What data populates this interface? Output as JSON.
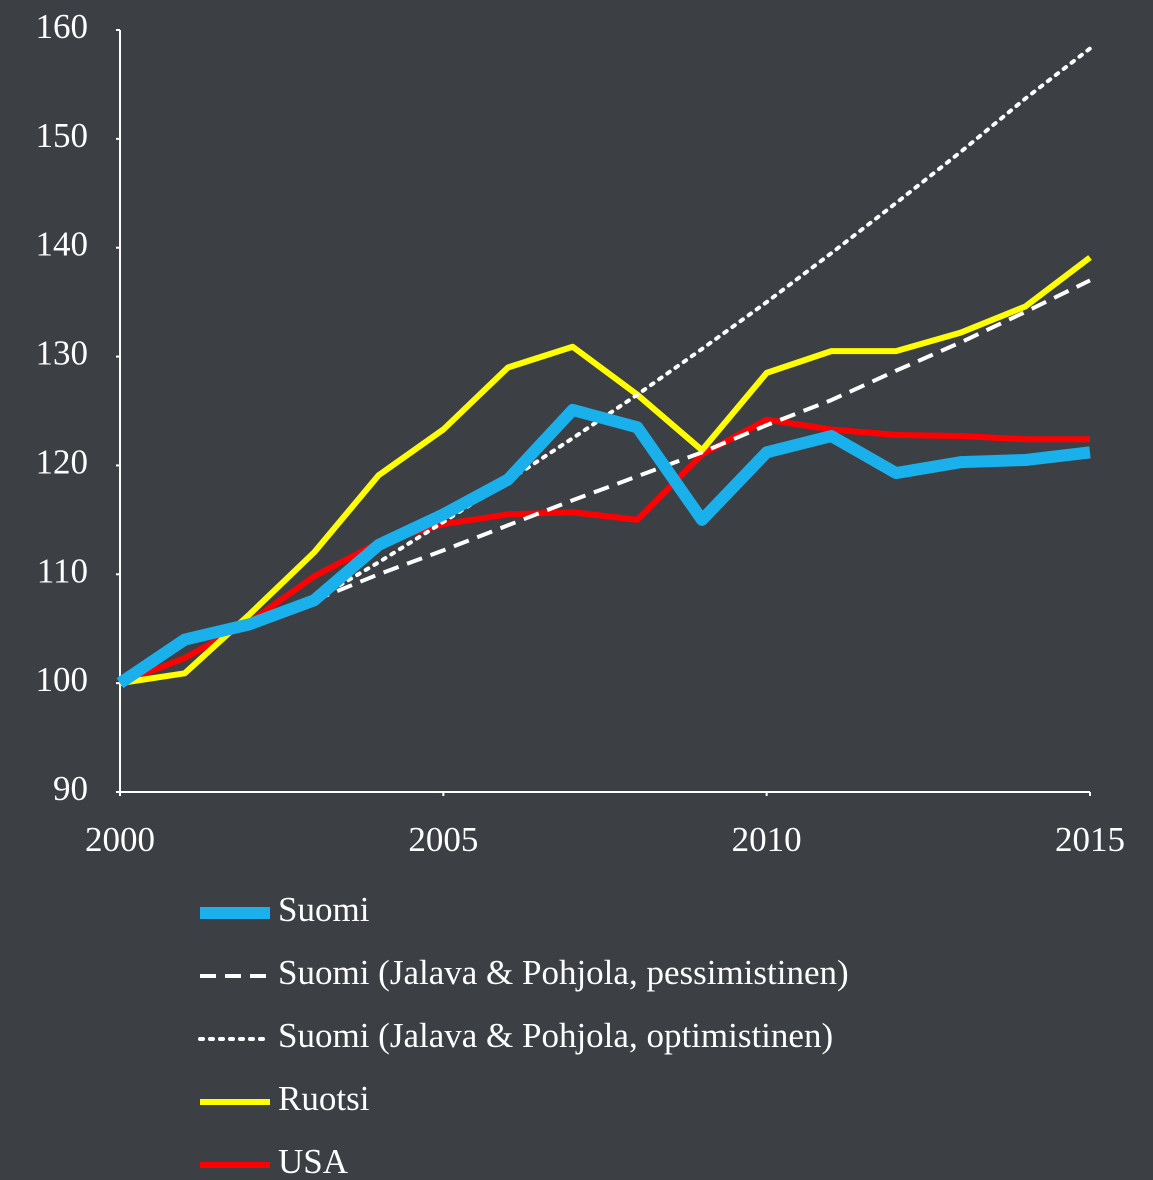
{
  "chart_data": {
    "type": "line",
    "x": [
      2000,
      2001,
      2002,
      2003,
      2004,
      2005,
      2006,
      2007,
      2008,
      2009,
      2010,
      2011,
      2012,
      2013,
      2014,
      2015
    ],
    "xlim": [
      2000,
      2015
    ],
    "xticks": [
      2000,
      2005,
      2010,
      2015
    ],
    "ylim": [
      90,
      160
    ],
    "yticks": [
      90,
      100,
      110,
      120,
      130,
      140,
      150,
      160
    ],
    "legend": "bottom",
    "series": [
      {
        "name": "Suomi",
        "color": "#1ab0ec",
        "linestyle": "solid",
        "values": [
          100,
          104,
          105.4,
          107.6,
          112.7,
          115.5,
          118.7,
          125.1,
          123.5,
          115,
          121.2,
          122.7,
          119.3,
          120.3,
          120.5,
          121.2
        ]
      },
      {
        "name": "Suomi (Jalava & Pohjola, pessimistinen)",
        "color": "#ffffff",
        "linestyle": "dashed",
        "values": [
          null,
          null,
          null,
          107.6,
          110,
          112.2,
          114.5,
          116.8,
          119,
          121.2,
          123.7,
          126,
          128.7,
          131.3,
          134.1,
          137
        ]
      },
      {
        "name": "Suomi (Jalava & Pohjola, optimistinen)",
        "color": "#ffffff",
        "linestyle": "dotted",
        "values": [
          null,
          null,
          null,
          107.6,
          111.1,
          114.8,
          118.6,
          122.5,
          126.5,
          130.7,
          135,
          139.5,
          144.1,
          148.8,
          153.7,
          158.3
        ]
      },
      {
        "name": "Ruotsi",
        "color": "#ffff00",
        "linestyle": "solid",
        "values": [
          100,
          100.9,
          106.3,
          112,
          119.1,
          123.3,
          129,
          130.9,
          126.5,
          121.4,
          128.5,
          130.5,
          130.5,
          132.2,
          134.6,
          139.1
        ]
      },
      {
        "name": "USA",
        "color": "#ff0000",
        "linestyle": "solid",
        "values": [
          100,
          102.3,
          105.6,
          109.8,
          112.9,
          114.6,
          115.5,
          115.7,
          115,
          121,
          124.2,
          123.3,
          122.8,
          122.7,
          122.4,
          122.4
        ]
      }
    ]
  }
}
